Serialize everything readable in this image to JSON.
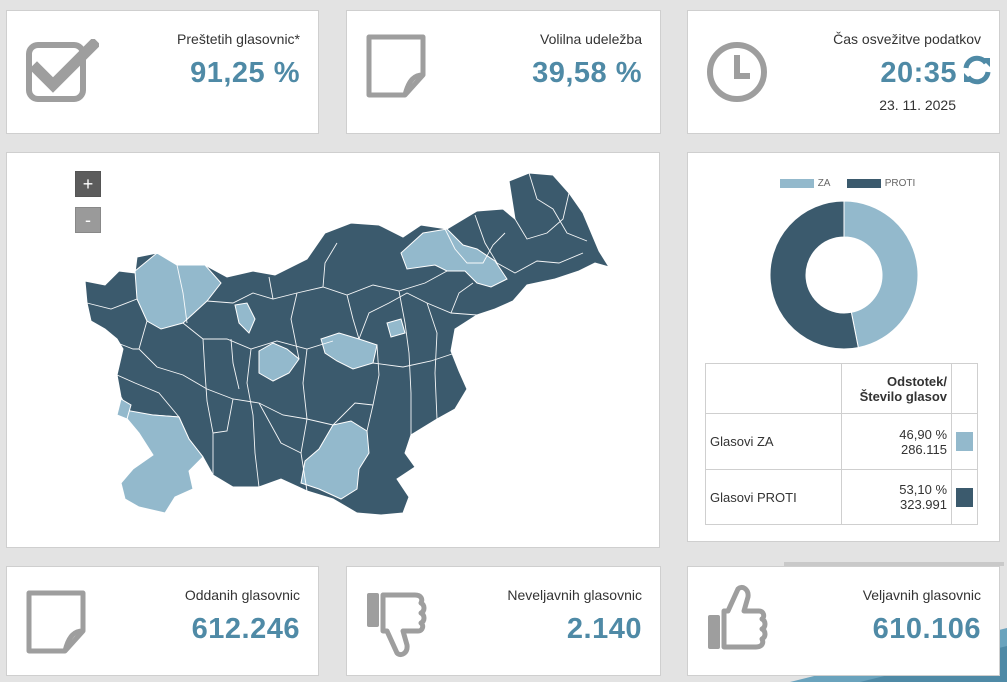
{
  "stats": {
    "counted": {
      "label": "Preštetih glasovnic*",
      "value": "91,25 %",
      "icon": "checkbox-check-icon"
    },
    "turnout": {
      "label": "Volilna udeležba",
      "value": "39,58 %",
      "icon": "note-icon"
    },
    "refresh": {
      "label": "Čas osvežitve podatkov",
      "time": "20:35",
      "date": "23. 11. 2025",
      "icon": "clock-icon"
    },
    "cast": {
      "label": "Oddanih glasovnic",
      "value": "612.246",
      "icon": "note-icon"
    },
    "invalid": {
      "label": "Neveljavnih glasovnic",
      "value": "2.140",
      "icon": "thumbs-down-icon"
    },
    "valid": {
      "label": "Veljavnih glasovnic",
      "value": "610.106",
      "icon": "thumbs-up-icon"
    }
  },
  "map": {
    "zoom_in": "+",
    "zoom_out": "-"
  },
  "results": {
    "legend_za": "ZA",
    "legend_proti": "PROTI",
    "header": "Odstotek/\nŠtevilo glasov",
    "header_line1": "Odstotek/",
    "header_line2": "Število glasov",
    "rows": [
      {
        "label": "Glasovi ZA",
        "percent": "46,90 %",
        "count": "286.115"
      },
      {
        "label": "Glasovi PROTI",
        "percent": "53,10 %",
        "count": "323.991"
      }
    ]
  },
  "chart_data": {
    "type": "pie",
    "categories": [
      "ZA",
      "PROTI"
    ],
    "values": [
      46.9,
      53.1
    ],
    "colors": [
      "#93b9cc",
      "#3b5a6d"
    ],
    "legend": "top"
  },
  "colors": {
    "accent": "#4f8aa6",
    "za": "#93b9cc",
    "proti": "#3b5a6d",
    "icon": "#9e9e9e"
  }
}
